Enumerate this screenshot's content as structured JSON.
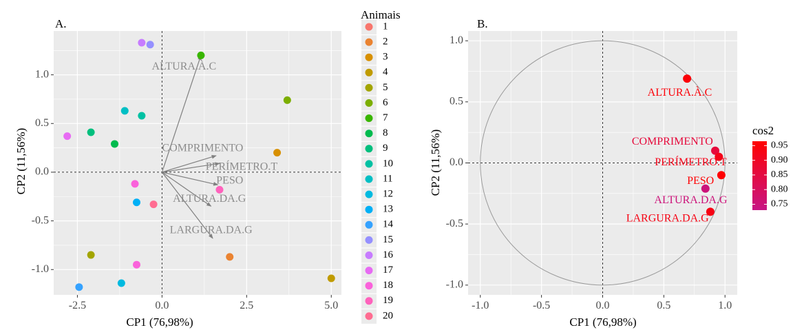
{
  "chart_data": [
    {
      "type": "scatter",
      "panel_label": "A.",
      "xlabel": "CP1 (76,98%)",
      "ylabel": "CP2 (11,56%)",
      "xlim": [
        -3.2,
        5.3
      ],
      "ylim": [
        -1.26,
        1.45
      ],
      "xticks": [
        -2.5,
        0.0,
        2.5,
        5.0
      ],
      "xtick_labels": [
        "-2.5",
        "0.0",
        "2.5",
        "5.0"
      ],
      "yticks": [
        -1.0,
        -0.5,
        0.0,
        0.5,
        1.0
      ],
      "ytick_labels": [
        "-1.0",
        "-0.5",
        "0.0",
        "0.5",
        "1.0"
      ],
      "grid": true,
      "legend": {
        "title": "Animais",
        "position": "right",
        "entries": [
          "1",
          "2",
          "3",
          "4",
          "5",
          "6",
          "7",
          "8",
          "9",
          "10",
          "11",
          "12",
          "13",
          "14",
          "15",
          "16",
          "17",
          "18",
          "19",
          "20"
        ],
        "colors": [
          "#F8766D",
          "#EA8331",
          "#D89000",
          "#C09B00",
          "#A3A500",
          "#7CAE00",
          "#39B600",
          "#00BB4E",
          "#00BF7D",
          "#00C1A3",
          "#00BFC4",
          "#00BAE0",
          "#00B0F6",
          "#35A2FF",
          "#9590FF",
          "#C77CFF",
          "#E76BF3",
          "#FA62DB",
          "#FF62BC",
          "#FF6C91"
        ]
      },
      "points": [
        {
          "x": -0.8,
          "y": -0.12,
          "group": "18"
        },
        {
          "x": 1.7,
          "y": -0.18,
          "group": "19"
        },
        {
          "x": -0.25,
          "y": -0.33,
          "group": "20"
        },
        {
          "x": -0.75,
          "y": -0.31,
          "group": "13"
        },
        {
          "x": 2.0,
          "y": -0.87,
          "group": "2"
        },
        {
          "x": 3.4,
          "y": 0.2,
          "group": "3"
        },
        {
          "x": 5.0,
          "y": -1.09,
          "group": "4"
        },
        {
          "x": -2.1,
          "y": -0.85,
          "group": "5"
        },
        {
          "x": 3.7,
          "y": 0.74,
          "group": "6"
        },
        {
          "x": 1.15,
          "y": 1.2,
          "group": "7"
        },
        {
          "x": -1.4,
          "y": 0.29,
          "group": "8"
        },
        {
          "x": -2.1,
          "y": 0.41,
          "group": "9"
        },
        {
          "x": -0.6,
          "y": 0.58,
          "group": "10"
        },
        {
          "x": -1.1,
          "y": 0.63,
          "group": "11"
        },
        {
          "x": -1.2,
          "y": -1.14,
          "group": "12"
        },
        {
          "x": -2.45,
          "y": -1.18,
          "group": "14"
        },
        {
          "x": -0.35,
          "y": 1.31,
          "group": "15"
        },
        {
          "x": -0.6,
          "y": 1.33,
          "group": "16"
        },
        {
          "x": -2.8,
          "y": 0.37,
          "group": "17"
        },
        {
          "x": -0.75,
          "y": -0.95,
          "group": "18"
        }
      ],
      "vectors": [
        {
          "label": "ALTURA.À.C",
          "x": 1.15,
          "y": 1.2
        },
        {
          "label": "COMPRIMENTO",
          "x": 1.6,
          "y": 0.17
        },
        {
          "label": "PERÍMETRO.T",
          "x": 1.7,
          "y": 0.09
        },
        {
          "label": "PESO",
          "x": 1.65,
          "y": -0.13
        },
        {
          "label": "ALTURA.DA.G",
          "x": 1.45,
          "y": -0.35
        },
        {
          "label": "LARGURA.DA.G",
          "x": 1.5,
          "y": -0.68
        }
      ],
      "vector_label_positions": [
        {
          "x": 0.65,
          "y": 1.08
        },
        {
          "x": 1.2,
          "y": 0.24
        },
        {
          "x": 2.35,
          "y": 0.05
        },
        {
          "x": 2.0,
          "y": -0.09
        },
        {
          "x": 1.4,
          "y": -0.28
        },
        {
          "x": 1.45,
          "y": -0.6
        }
      ]
    },
    {
      "type": "scatter",
      "panel_label": "B.",
      "xlabel": "CP1 (76,98%)",
      "ylabel": "CP2 (11,56%)",
      "xlim": [
        -1.1,
        1.1
      ],
      "ylim": [
        -1.08,
        1.08
      ],
      "xticks": [
        -1.0,
        -0.5,
        0.0,
        0.5,
        1.0
      ],
      "xtick_labels": [
        "-1.0",
        "-0.5",
        "0.0",
        "0.5",
        "1.0"
      ],
      "yticks": [
        -1.0,
        -0.5,
        0.0,
        0.5,
        1.0
      ],
      "ytick_labels": [
        "-1.0",
        "-0.5",
        "0.0",
        "0.5",
        "1.0"
      ],
      "grid": true,
      "unit_circle": true,
      "legend": {
        "title": "cos2",
        "position": "right",
        "scale": [
          "0.95",
          "0.90",
          "0.85",
          "0.80",
          "0.75"
        ],
        "scale_values": [
          0.95,
          0.9,
          0.85,
          0.8,
          0.75
        ],
        "range": [
          0.73,
          0.965
        ],
        "low_color": "#C71585",
        "high_color": "#FF0000"
      },
      "points": [
        {
          "label": "ALTURA.À.C",
          "x": 0.69,
          "y": 0.69,
          "cos2": 0.95
        },
        {
          "label": "COMPRIMENTO",
          "x": 0.92,
          "y": 0.1,
          "cos2": 0.86
        },
        {
          "label": "PERÍMETRO.T",
          "x": 0.95,
          "y": 0.05,
          "cos2": 0.92
        },
        {
          "label": "PESO",
          "x": 0.97,
          "y": -0.1,
          "cos2": 0.96
        },
        {
          "label": "ALTURA.DA.G",
          "x": 0.84,
          "y": -0.21,
          "cos2": 0.75
        },
        {
          "label": "LARGURA.DA.G",
          "x": 0.88,
          "y": -0.4,
          "cos2": 0.93
        }
      ],
      "point_label_positions": [
        {
          "x": 0.63,
          "y": 0.57
        },
        {
          "x": 0.57,
          "y": 0.17
        },
        {
          "x": 0.72,
          "y": 0.0
        },
        {
          "x": 0.8,
          "y": -0.15
        },
        {
          "x": 0.72,
          "y": -0.31
        },
        {
          "x": 0.53,
          "y": -0.46
        }
      ]
    }
  ]
}
